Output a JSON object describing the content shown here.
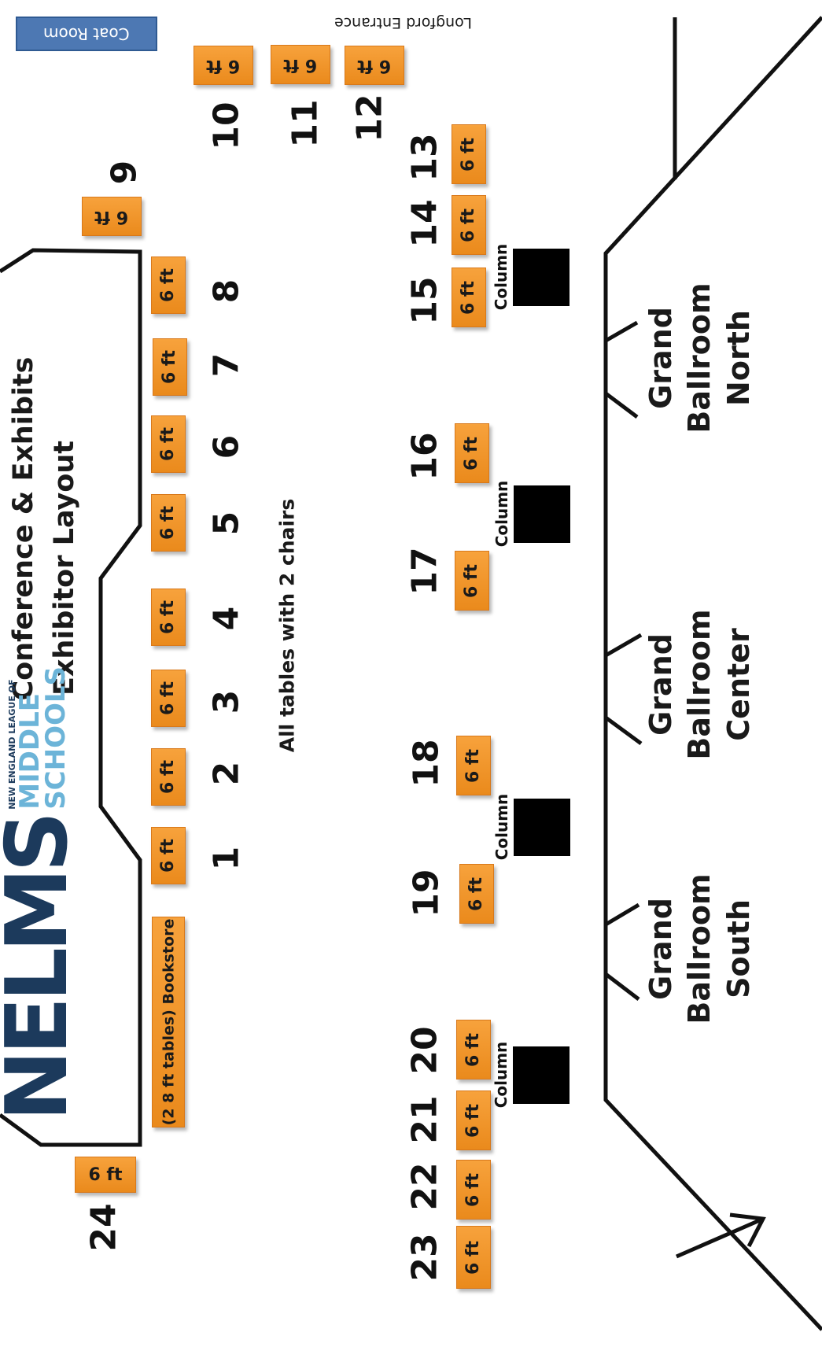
{
  "page_header": "Exhibitor Layout",
  "title": {
    "line1": "Conference & Exhibits",
    "line2": "Exhibitor Layout"
  },
  "logo": {
    "main": "NELMS",
    "line1": "NEW ENGLAND LEAGUE OF",
    "line2": "MIDDLE",
    "line3": "SCHOOLS"
  },
  "coat_room": "Coat Room",
  "entrance": "Longford Entrance",
  "note": "All tables with 2 chairs",
  "bookstore": "(2 8 ft tables) Bookstore",
  "table_label": "6 ft",
  "column_label": "Column",
  "ballrooms": [
    {
      "line1": "Grand",
      "line2": "Ballroom",
      "line3": "North"
    },
    {
      "line1": "Grand",
      "line2": "Ballroom",
      "line3": "Center"
    },
    {
      "line1": "Grand",
      "line2": "Ballroom",
      "line3": "South"
    }
  ],
  "booths": [
    {
      "number": "1",
      "label": "6 ft"
    },
    {
      "number": "2",
      "label": "6 ft"
    },
    {
      "number": "3",
      "label": "6 ft"
    },
    {
      "number": "4",
      "label": "6 ft"
    },
    {
      "number": "5",
      "label": "6 ft"
    },
    {
      "number": "6",
      "label": "6 ft"
    },
    {
      "number": "7",
      "label": "6 ft"
    },
    {
      "number": "8",
      "label": "6 ft"
    },
    {
      "number": "9",
      "label": "6 ft"
    },
    {
      "number": "10",
      "label": "6 ft"
    },
    {
      "number": "11",
      "label": "6 ft"
    },
    {
      "number": "12",
      "label": "6 ft"
    },
    {
      "number": "13",
      "label": "6 ft"
    },
    {
      "number": "14",
      "label": "6 ft"
    },
    {
      "number": "15",
      "label": "6 ft"
    },
    {
      "number": "16",
      "label": "6 ft"
    },
    {
      "number": "17",
      "label": "6 ft"
    },
    {
      "number": "18",
      "label": "6 ft"
    },
    {
      "number": "19",
      "label": "6 ft"
    },
    {
      "number": "20",
      "label": "6 ft"
    },
    {
      "number": "21",
      "label": "6 ft"
    },
    {
      "number": "22",
      "label": "6 ft"
    },
    {
      "number": "23",
      "label": "6 ft"
    },
    {
      "number": "24",
      "label": "6 ft"
    }
  ],
  "colors": {
    "table": "#f29a30",
    "logo_dark": "#1c3a5c",
    "logo_light": "#6cb4d8",
    "coat_room": "#4d78b3"
  }
}
